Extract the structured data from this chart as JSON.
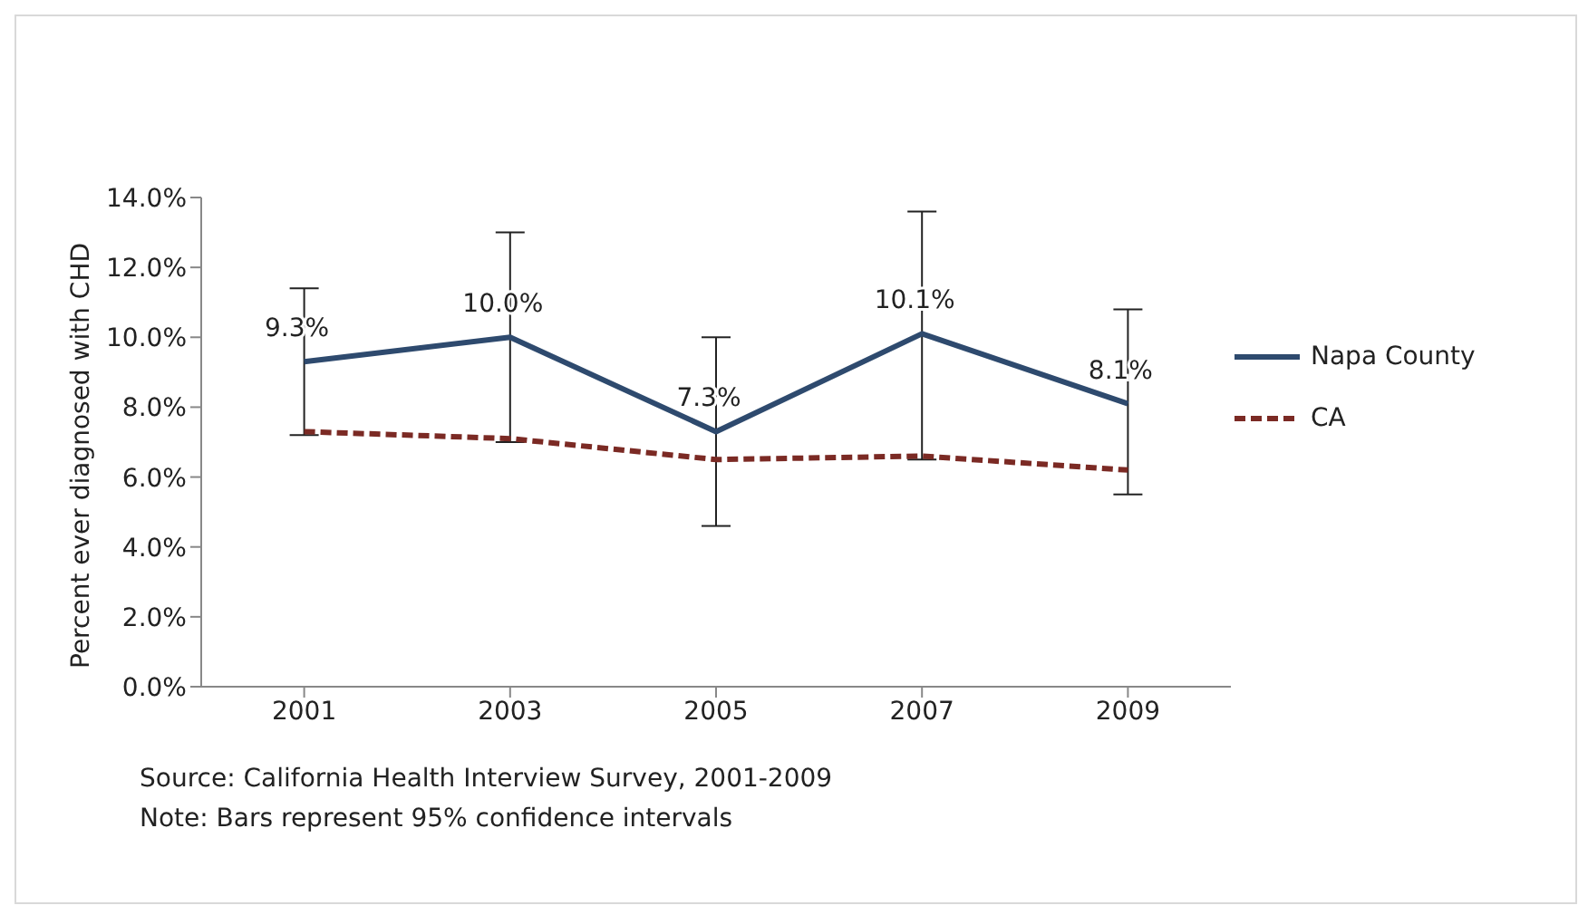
{
  "chart_data": {
    "type": "line",
    "ylabel": "Percent ever diagnosed with CHD",
    "categories": [
      "2001",
      "2003",
      "2005",
      "2007",
      "2009"
    ],
    "series": [
      {
        "name": "Napa County",
        "color": "#2e4a6e",
        "line_style": "solid",
        "values": [
          9.3,
          10.0,
          7.3,
          10.1,
          8.1
        ],
        "errors": [
          [
            7.2,
            11.4
          ],
          [
            7.0,
            13.0
          ],
          [
            4.6,
            10.0
          ],
          [
            6.5,
            13.6
          ],
          [
            5.5,
            10.8
          ]
        ],
        "value_labels": [
          "9.3%",
          "10.0%",
          "7.3%",
          "10.1%",
          "8.1%"
        ]
      },
      {
        "name": "CA",
        "color": "#7b2a24",
        "line_style": "dashed",
        "values": [
          7.3,
          7.1,
          6.5,
          6.6,
          6.2
        ]
      }
    ],
    "ylim": [
      0,
      14
    ],
    "yticks": [
      {
        "value": 0,
        "label": "0.0%"
      },
      {
        "value": 2,
        "label": "2.0%"
      },
      {
        "value": 4,
        "label": "4.0%"
      },
      {
        "value": 6,
        "label": "6.0%"
      },
      {
        "value": 8,
        "label": "8.0%"
      },
      {
        "value": 10,
        "label": "10.0%"
      },
      {
        "value": 12,
        "label": "12.0%"
      },
      {
        "value": 14,
        "label": "14.0%"
      }
    ],
    "grid": false,
    "marker": "none",
    "legend": "right",
    "annotations": [
      "Source: California Health Interview Survey,  2001-2009",
      "Note: Bars represent  95% confidence intervals"
    ]
  }
}
